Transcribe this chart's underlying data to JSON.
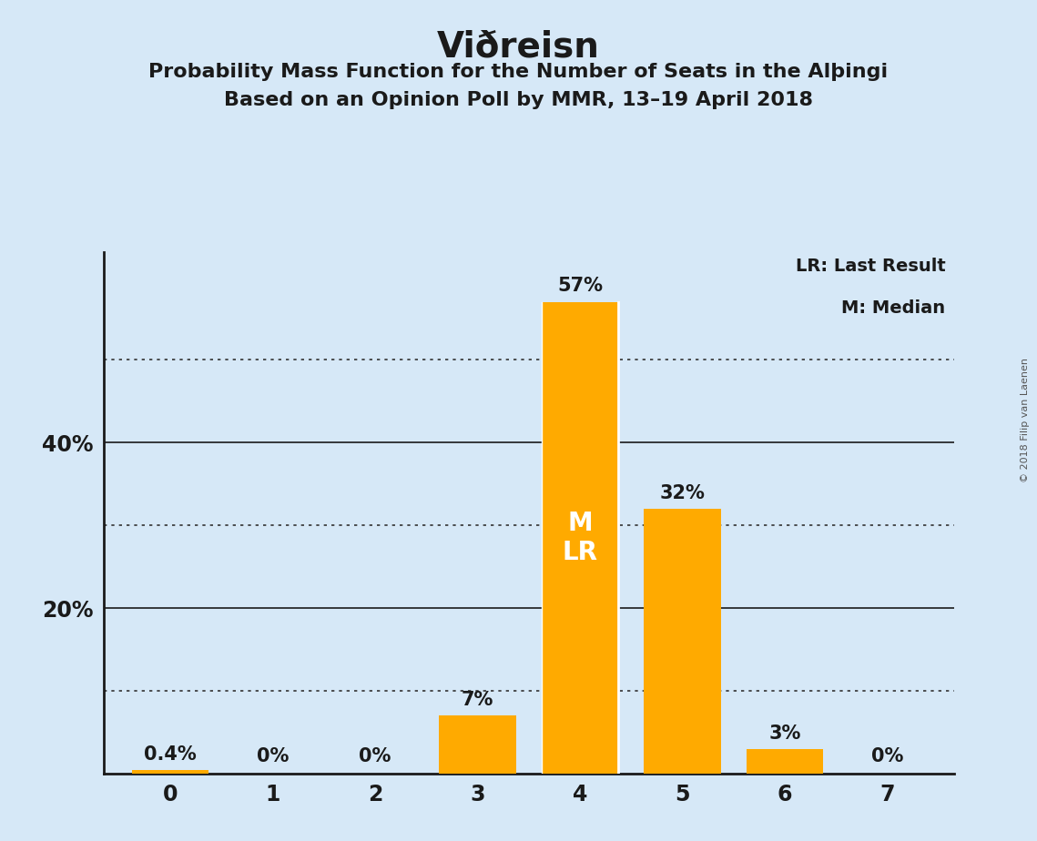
{
  "title": "Viðreisn",
  "subtitle1": "Probability Mass Function for the Number of Seats in the Alþingi",
  "subtitle2": "Based on an Opinion Poll by MMR, 13–19 April 2018",
  "categories": [
    0,
    1,
    2,
    3,
    4,
    5,
    6,
    7
  ],
  "values": [
    0.4,
    0.04,
    0.0,
    7.0,
    57.0,
    32.0,
    3.0,
    0.0
  ],
  "bar_color": "#FFAA00",
  "background_color": "#D6E8F7",
  "text_color": "#1a1a1a",
  "bar_labels": [
    "0.4%",
    "0%",
    "0%",
    "7%",
    "57%",
    "32%",
    "3%",
    "0%"
  ],
  "median_seat": 4,
  "lr_seat": 4,
  "median_label": "M",
  "lr_label": "LR",
  "legend_text1": "LR: Last Result",
  "legend_text2": "M: Median",
  "ysolid_ticks": [
    20,
    40
  ],
  "ydotted_ticks": [
    10,
    30,
    50
  ],
  "ylim": [
    0,
    63
  ],
  "copyright": "© 2018 Filip van Laenen",
  "bar_width": 0.75
}
